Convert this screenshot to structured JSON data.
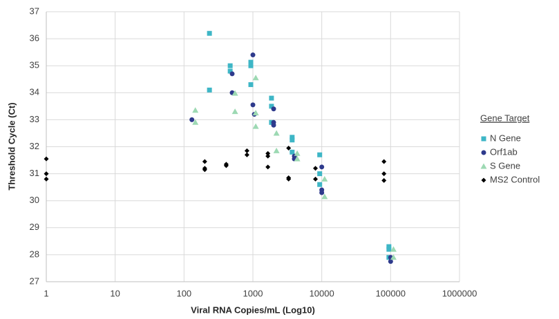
{
  "chart_data": {
    "type": "scatter",
    "x_label": "Viral RNA Copies/mL (Log10)",
    "y_label": "Threshold Cycle (Ct)",
    "legend_title": "Gene Target",
    "x_log": true,
    "grid": true,
    "legend_position": "right",
    "xlim": [
      1,
      1000000
    ],
    "xticks": [
      1,
      10,
      100,
      1000,
      10000,
      100000,
      1000000
    ],
    "ylim": [
      27,
      37
    ],
    "yticks": [
      27,
      28,
      29,
      30,
      31,
      32,
      33,
      34,
      35,
      36,
      37
    ],
    "series": [
      {
        "name": "N Gene",
        "color": "#3eb6c6",
        "marker": "square",
        "x": [
          234,
          234,
          468,
          468,
          933,
          933,
          933,
          1862,
          1862,
          1862,
          3715,
          3715,
          3715,
          9333,
          9333,
          9333,
          94400,
          94400,
          94400
        ],
        "values": [
          36.2,
          34.1,
          35.0,
          34.8,
          35.13,
          35.0,
          34.3,
          33.8,
          33.5,
          32.9,
          32.35,
          32.25,
          31.8,
          31.7,
          31.0,
          30.6,
          28.3,
          28.2,
          27.9
        ]
      },
      {
        "name": "Orf1ab",
        "color": "#2e3a8c",
        "marker": "circle",
        "x": [
          500,
          1000,
          500,
          130,
          1000,
          1050,
          2000,
          2000,
          2000,
          4000,
          4000,
          10000,
          10000,
          10000,
          100000,
          100000
        ],
        "values": [
          34.7,
          35.4,
          34.0,
          33.0,
          33.55,
          33.2,
          33.4,
          32.9,
          32.8,
          31.65,
          31.55,
          31.25,
          30.4,
          30.3,
          27.9,
          27.75
        ]
      },
      {
        "name": "S Gene",
        "color": "#9dd9b3",
        "marker": "triangle",
        "x": [
          146,
          146,
          550,
          550,
          1100,
          1100,
          1100,
          2200,
          2200,
          4400,
          4400,
          11000,
          11000,
          110000,
          110000
        ],
        "values": [
          33.35,
          32.9,
          33.98,
          33.3,
          34.55,
          33.25,
          32.75,
          32.5,
          31.85,
          31.75,
          31.55,
          30.8,
          30.15,
          28.2,
          27.9
        ]
      },
      {
        "name": "MS2 Control",
        "color": "#000000",
        "marker": "diamond",
        "x": [
          1,
          1,
          1,
          200,
          200,
          200,
          410,
          410,
          820,
          820,
          1650,
          1650,
          1650,
          3300,
          3300,
          3300,
          8100,
          8100,
          80000,
          80000,
          80000
        ],
        "values": [
          31.55,
          31.0,
          30.8,
          31.45,
          31.2,
          31.15,
          31.35,
          31.3,
          31.85,
          31.7,
          31.75,
          31.65,
          31.25,
          31.95,
          30.85,
          30.8,
          31.2,
          30.8,
          31.45,
          31.0,
          30.75
        ]
      }
    ]
  }
}
